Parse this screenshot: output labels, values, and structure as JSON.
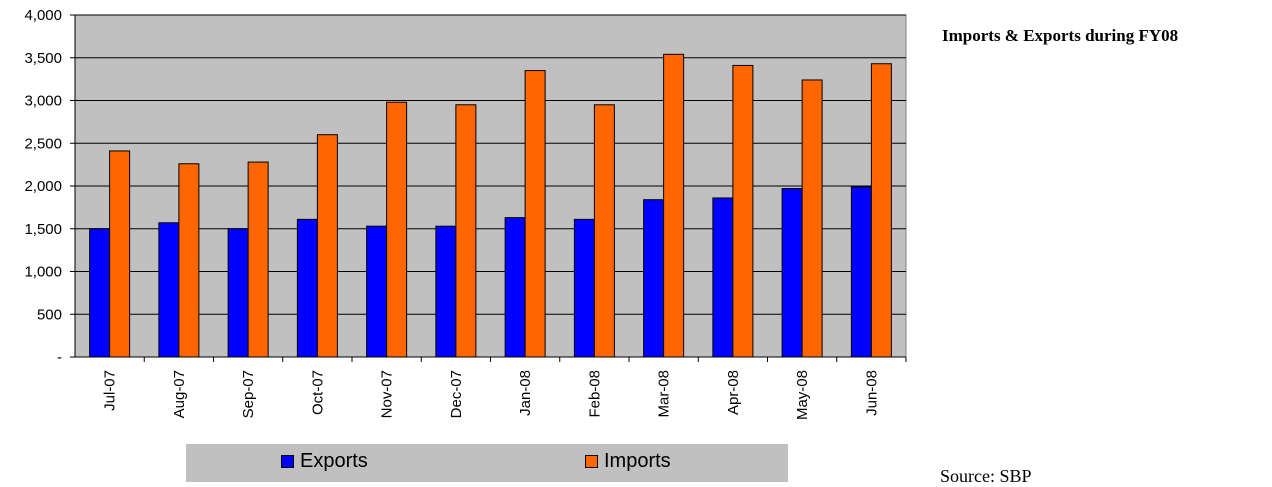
{
  "title": "Imports & Exports during FY08",
  "source": "Source: SBP",
  "chart_data": {
    "type": "bar",
    "title": "Imports & Exports during FY08",
    "xlabel": "",
    "ylabel": "",
    "categories": [
      "Jul-07",
      "Aug-07",
      "Sep-07",
      "Oct-07",
      "Nov-07",
      "Dec-07",
      "Jan-08",
      "Feb-08",
      "Mar-08",
      "Apr-08",
      "May-08",
      "Jun-08"
    ],
    "series": [
      {
        "name": "Exports",
        "color": "#0000ff",
        "values": [
          1500,
          1570,
          1500,
          1610,
          1530,
          1530,
          1630,
          1610,
          1840,
          1860,
          1970,
          1990
        ]
      },
      {
        "name": "Imports",
        "color": "#ff6600",
        "values": [
          2410,
          2260,
          2280,
          2600,
          2980,
          2950,
          3350,
          2950,
          3540,
          3410,
          3240,
          3430
        ]
      }
    ],
    "ylim": [
      0,
      4000
    ],
    "yticks": [
      0,
      500,
      1000,
      1500,
      2000,
      2500,
      3000,
      3500,
      4000
    ],
    "ytick_labels": [
      "-",
      "500",
      "1,000",
      "1,500",
      "2,000",
      "2,500",
      "3,000",
      "3,500",
      "4,000"
    ],
    "grid": true,
    "plot_background": "#c0c0c0",
    "legend_position": "bottom"
  }
}
